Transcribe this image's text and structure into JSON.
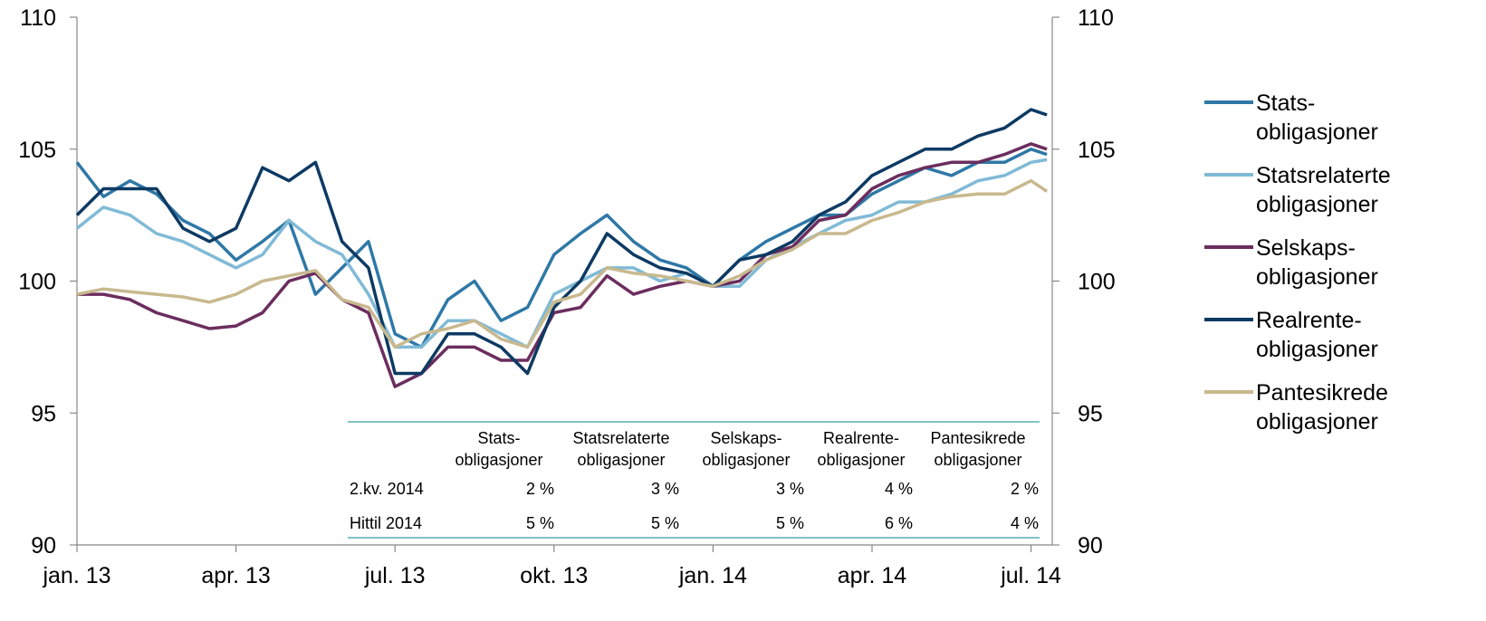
{
  "chart_data": {
    "type": "line",
    "x": [
      0,
      0.5,
      1,
      1.5,
      2,
      2.5,
      3,
      3.5,
      4,
      4.5,
      5,
      5.5,
      6,
      6.5,
      7,
      7.5,
      8,
      8.5,
      9,
      9.5,
      10,
      10.5,
      11,
      11.5,
      12,
      12.5,
      13,
      13.5,
      14,
      14.5,
      15,
      15.5,
      16,
      16.5,
      17,
      17.5,
      18,
      18.3
    ],
    "xlim": [
      0,
      18.4
    ],
    "xticks": [
      {
        "value": 0,
        "label": "jan. 13"
      },
      {
        "value": 3,
        "label": "apr. 13"
      },
      {
        "value": 6,
        "label": "jul. 13"
      },
      {
        "value": 9,
        "label": "okt. 13"
      },
      {
        "value": 12,
        "label": "jan. 14"
      },
      {
        "value": 15,
        "label": "apr. 14"
      },
      {
        "value": 18,
        "label": "jul. 14"
      }
    ],
    "ylim": [
      90,
      110
    ],
    "yticks": [
      90,
      95,
      100,
      105,
      110
    ],
    "y2lim": [
      90,
      110
    ],
    "y2ticks": [
      90,
      95,
      100,
      105,
      110
    ],
    "legend": "right",
    "series": [
      {
        "name": "Stats-\nobligasjoner",
        "color": "#2e78a6",
        "values": [
          104.5,
          103.2,
          103.8,
          103.3,
          102.3,
          101.8,
          100.8,
          101.5,
          102.3,
          99.5,
          100.5,
          101.5,
          98,
          97.5,
          99.3,
          100,
          98.5,
          99,
          101,
          101.8,
          102.5,
          101.5,
          100.8,
          100.5,
          99.8,
          100.8,
          101.5,
          102,
          102.5,
          102.5,
          103.3,
          103.8,
          104.3,
          104,
          104.5,
          104.5,
          105,
          104.8
        ]
      },
      {
        "name": "Statsrelaterte\nobligasjoner",
        "color": "#80bad6",
        "values": [
          102,
          102.8,
          102.5,
          101.8,
          101.5,
          101,
          100.5,
          101,
          102.3,
          101.5,
          101,
          99.5,
          97.5,
          97.5,
          98.5,
          98.5,
          98,
          97.5,
          99.5,
          100,
          100.5,
          100.5,
          100,
          100.3,
          99.8,
          99.8,
          100.8,
          101.3,
          101.8,
          102.3,
          102.5,
          103,
          103,
          103.3,
          103.8,
          104,
          104.5,
          104.6
        ]
      },
      {
        "name": "Selskaps-\nobligasjoner",
        "color": "#6b2d5e",
        "values": [
          99.5,
          99.5,
          99.3,
          98.8,
          98.5,
          98.2,
          98.3,
          98.8,
          100,
          100.3,
          99.3,
          98.8,
          96,
          96.5,
          97.5,
          97.5,
          97,
          97,
          98.8,
          99,
          100.2,
          99.5,
          99.8,
          100,
          99.8,
          100,
          101,
          101.3,
          102.3,
          102.5,
          103.5,
          104,
          104.3,
          104.5,
          104.5,
          104.8,
          105.2,
          105
        ]
      },
      {
        "name": "Realrente-\nobligasjoner",
        "color": "#0d3a63",
        "values": [
          102.5,
          103.5,
          103.5,
          103.5,
          102,
          101.5,
          102,
          104.3,
          103.8,
          104.5,
          101.5,
          100.5,
          96.5,
          96.5,
          98,
          98,
          97.5,
          96.5,
          99,
          100,
          101.8,
          101,
          100.5,
          100.3,
          99.8,
          100.8,
          101,
          101.5,
          102.5,
          103,
          104,
          104.5,
          105,
          105,
          105.5,
          105.8,
          106.5,
          106.3
        ]
      },
      {
        "name": "Pantesikrede\nobligasjoner",
        "color": "#c8b98e",
        "values": [
          99.5,
          99.7,
          99.6,
          99.5,
          99.4,
          99.2,
          99.5,
          100,
          100.2,
          100.4,
          99.3,
          99,
          97.5,
          98,
          98.2,
          98.5,
          97.8,
          97.5,
          99.2,
          99.5,
          100.5,
          100.3,
          100.2,
          100,
          99.8,
          100.2,
          100.8,
          101.2,
          101.8,
          101.8,
          102.3,
          102.6,
          103,
          103.2,
          103.3,
          103.3,
          103.8,
          103.4
        ]
      }
    ],
    "table": {
      "columns": [
        "Stats-\nobligasjoner",
        "Statsrelaterte\nobligasjoner",
        "Selskaps-\nobligasjoner",
        "Realrente-\nobligasjoner",
        "Pantesikrede\nobligasjoner"
      ],
      "rows": [
        [
          "2.kv. 2014",
          "2 %",
          "3 %",
          "3 %",
          "4 %",
          "2 %"
        ],
        [
          "Hittil 2014",
          "5 %",
          "5 %",
          "5 %",
          "6 %",
          "4 %"
        ]
      ]
    }
  }
}
